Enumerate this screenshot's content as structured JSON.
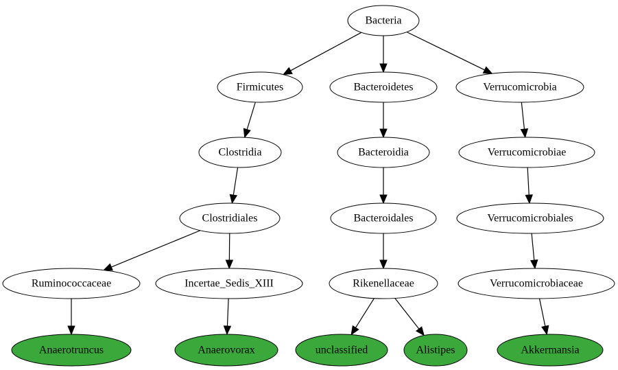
{
  "colors": {
    "default_fill": "#ffffff",
    "leaf_fill": "#3aa83a",
    "outline": "#000000"
  },
  "nodes": [
    {
      "id": "bacteria",
      "label": "Bacteria",
      "leaf": false
    },
    {
      "id": "firmicutes",
      "label": "Firmicutes",
      "leaf": false
    },
    {
      "id": "bacteroidetes",
      "label": "Bacteroidetes",
      "leaf": false
    },
    {
      "id": "verrucomicrobia",
      "label": "Verrucomicrobia",
      "leaf": false
    },
    {
      "id": "clostridia",
      "label": "Clostridia",
      "leaf": false
    },
    {
      "id": "bacteroidia",
      "label": "Bacteroidia",
      "leaf": false
    },
    {
      "id": "verrucomicrobiae",
      "label": "Verrucomicrobiae",
      "leaf": false
    },
    {
      "id": "clostridiales",
      "label": "Clostridiales",
      "leaf": false
    },
    {
      "id": "bacteroidales",
      "label": "Bacteroidales",
      "leaf": false
    },
    {
      "id": "verrucomicrobiales",
      "label": "Verrucomicrobiales",
      "leaf": false
    },
    {
      "id": "ruminococcaceae",
      "label": "Ruminococcaceae",
      "leaf": false
    },
    {
      "id": "incertae",
      "label": "Incertae_Sedis_XIII",
      "leaf": false
    },
    {
      "id": "rikenellaceae",
      "label": "Rikenellaceae",
      "leaf": false
    },
    {
      "id": "verrucomicrobiaceae",
      "label": "Verrucomicrobiaceae",
      "leaf": false
    },
    {
      "id": "anaerotruncus",
      "label": "Anaerotruncus",
      "leaf": true
    },
    {
      "id": "anaerovorax",
      "label": "Anaerovorax",
      "leaf": true
    },
    {
      "id": "unclassified",
      "label": "unclassified",
      "leaf": true
    },
    {
      "id": "alistipes",
      "label": "Alistipes",
      "leaf": true
    },
    {
      "id": "akkermansia",
      "label": "Akkermansia",
      "leaf": true
    }
  ],
  "edges": [
    {
      "from": "bacteria",
      "to": "firmicutes"
    },
    {
      "from": "bacteria",
      "to": "bacteroidetes"
    },
    {
      "from": "bacteria",
      "to": "verrucomicrobia"
    },
    {
      "from": "firmicutes",
      "to": "clostridia"
    },
    {
      "from": "bacteroidetes",
      "to": "bacteroidia"
    },
    {
      "from": "verrucomicrobia",
      "to": "verrucomicrobiae"
    },
    {
      "from": "clostridia",
      "to": "clostridiales"
    },
    {
      "from": "bacteroidia",
      "to": "bacteroidales"
    },
    {
      "from": "verrucomicrobiae",
      "to": "verrucomicrobiales"
    },
    {
      "from": "clostridiales",
      "to": "ruminococcaceae"
    },
    {
      "from": "clostridiales",
      "to": "incertae"
    },
    {
      "from": "bacteroidales",
      "to": "rikenellaceae"
    },
    {
      "from": "verrucomicrobiales",
      "to": "verrucomicrobiaceae"
    },
    {
      "from": "ruminococcaceae",
      "to": "anaerotruncus"
    },
    {
      "from": "incertae",
      "to": "anaerovorax"
    },
    {
      "from": "rikenellaceae",
      "to": "unclassified"
    },
    {
      "from": "rikenellaceae",
      "to": "alistipes"
    },
    {
      "from": "verrucomicrobiaceae",
      "to": "akkermansia"
    }
  ]
}
